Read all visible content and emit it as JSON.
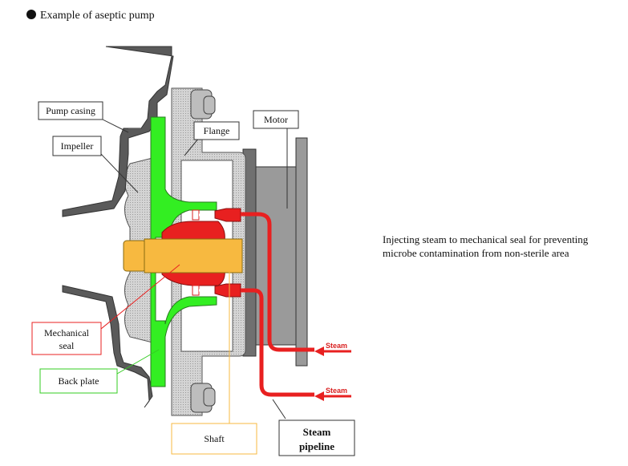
{
  "title": "Example of aseptic pump",
  "labels": {
    "pump_casing": "Pump casing",
    "impeller": "Impeller",
    "flange": "Flange",
    "motor": "Motor",
    "mechanical_seal_line1": "Mechanical",
    "mechanical_seal_line2": "seal",
    "back_plate": "Back plate",
    "shaft": "Shaft",
    "steam_pipeline_line1": "Steam",
    "steam_pipeline_line2": "pipeline",
    "steam_upper": "Steam",
    "steam_lower": "Steam"
  },
  "note": {
    "line1": "Injecting steam to mechanical seal for preventing",
    "line2": "microbe contamination from non-sterile area"
  },
  "colors": {
    "back_plate": "#33ee22",
    "shaft": "#f7b940",
    "seal": "#e82020",
    "steam": "#e82020",
    "casing": "#555555",
    "light_gray": "#cccccc",
    "mid_gray": "#999999"
  },
  "icons": {
    "bullet": "filled-circle-icon"
  }
}
